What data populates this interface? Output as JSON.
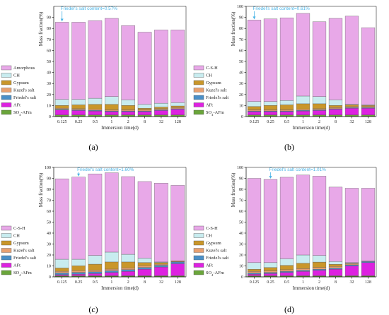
{
  "chart_data": [
    {
      "type": "bar",
      "panel_label": "(a)",
      "annotation": "Friedel's salt content=0.57%",
      "annotation_index": 0,
      "xlabel": "Immersion time(d)",
      "ylabel": "Mass fraction(%)",
      "ylim": [
        0,
        100
      ],
      "yticks": [
        0,
        10,
        20,
        30,
        40,
        50,
        60,
        70,
        80,
        90
      ],
      "categories": [
        "0.125",
        "0.25",
        "0.5",
        "1",
        "2",
        "8",
        "32",
        "128"
      ],
      "legend_position": "left",
      "series": [
        {
          "name": "SO4-AFm",
          "values": [
            1.5,
            1.5,
            1.5,
            1.5,
            1.5,
            1.5,
            1.5,
            1.5
          ]
        },
        {
          "name": "AFt",
          "values": [
            4.5,
            4,
            3.5,
            3,
            3,
            3,
            4,
            5
          ]
        },
        {
          "name": "Friedel's salt",
          "values": [
            0.6,
            0.6,
            0.6,
            0.6,
            0.6,
            0.6,
            0.6,
            0.6
          ]
        },
        {
          "name": "Kuzel's salt",
          "values": [
            1,
            1,
            1,
            1,
            1,
            1,
            1,
            1
          ]
        },
        {
          "name": "Gypsum",
          "values": [
            2.5,
            3.5,
            4.5,
            5,
            4,
            1.5,
            1.5,
            1.5
          ]
        },
        {
          "name": "CH",
          "values": [
            5.5,
            5,
            5.5,
            7,
            5,
            3.5,
            3.5,
            3
          ]
        },
        {
          "name": "Amorphous",
          "values": [
            70,
            70,
            70.5,
            71,
            67.5,
            65.5,
            66.5,
            66
          ]
        }
      ]
    },
    {
      "type": "bar",
      "panel_label": "(b)",
      "annotation": "Friedel's salt content=0.61%",
      "annotation_index": 0,
      "xlabel": "Immersion time(d)",
      "ylabel": "Mass fraction(%)",
      "ylim": [
        0,
        100
      ],
      "yticks": [
        0,
        10,
        20,
        30,
        40,
        50,
        60,
        70,
        80,
        90,
        100
      ],
      "categories": [
        "0.125",
        "0.25",
        "0.5",
        "1",
        "2",
        "8",
        "32",
        "128"
      ],
      "legend_position": "left",
      "series": [
        {
          "name": "SO4-AFm",
          "values": [
            1.5,
            1.5,
            1.5,
            1.5,
            1.5,
            1.5,
            1.5,
            1.5
          ]
        },
        {
          "name": "AFt",
          "values": [
            3,
            3,
            3,
            3.5,
            4,
            5,
            6,
            6
          ]
        },
        {
          "name": "Friedel's salt",
          "values": [
            0.6,
            0.6,
            0.6,
            0.6,
            0.6,
            0.6,
            0.6,
            0.6
          ]
        },
        {
          "name": "Kuzel's salt",
          "values": [
            1,
            1,
            1,
            1,
            1,
            1,
            1,
            1
          ]
        },
        {
          "name": "Gypsum",
          "values": [
            3,
            4,
            4.5,
            5,
            4.5,
            2,
            1.5,
            1
          ]
        },
        {
          "name": "CH",
          "values": [
            4.5,
            3.5,
            4,
            7,
            6.5,
            5,
            0.5,
            0.5
          ]
        },
        {
          "name": "C-S-H",
          "values": [
            74,
            75,
            75,
            75,
            68,
            74,
            80,
            70
          ]
        }
      ]
    },
    {
      "type": "bar",
      "panel_label": "(c)",
      "annotation": "Friedel's salt content=1.60%",
      "annotation_index": 1,
      "xlabel": "Immersion time(d)",
      "ylabel": "Mass fraction(%)",
      "ylim": [
        0,
        100
      ],
      "yticks": [
        0,
        10,
        20,
        30,
        40,
        50,
        60,
        70,
        80,
        90,
        100
      ],
      "categories": [
        "0.125",
        "0.25",
        "0.5",
        "1",
        "2",
        "8",
        "32",
        "128"
      ],
      "legend_position": "left",
      "series": [
        {
          "name": "SO4-AFm",
          "values": [
            1,
            1,
            1,
            1,
            1,
            1,
            1,
            1
          ]
        },
        {
          "name": "AFt",
          "values": [
            1,
            1.5,
            2,
            3,
            4,
            6,
            8,
            11
          ]
        },
        {
          "name": "Friedel's salt",
          "values": [
            1.6,
            1.6,
            1.6,
            1.6,
            1.6,
            1.6,
            1.6,
            1.6
          ]
        },
        {
          "name": "Kuzel's salt",
          "values": [
            1.5,
            1.5,
            1.5,
            1.5,
            1.5,
            1.5,
            1,
            0.5
          ]
        },
        {
          "name": "Gypsum",
          "values": [
            3,
            4.5,
            5.5,
            6.5,
            5.5,
            3,
            1.5,
            0.5
          ]
        },
        {
          "name": "CH",
          "values": [
            8,
            6,
            8,
            9,
            7,
            4,
            0.5,
            0
          ]
        },
        {
          "name": "C-S-H",
          "values": [
            73.5,
            75,
            74.5,
            72.5,
            71,
            70,
            72,
            69
          ]
        }
      ]
    },
    {
      "type": "bar",
      "panel_label": "(d)",
      "annotation": "Friedel's salt content=1.01%",
      "annotation_index": 1,
      "xlabel": "Immersion time(d)",
      "ylabel": "Mass fraction(%)",
      "ylim": [
        0,
        100
      ],
      "yticks": [
        0,
        10,
        20,
        30,
        40,
        50,
        60,
        70,
        80,
        90,
        100
      ],
      "categories": [
        "0.125",
        "0.25",
        "0.5",
        "1",
        "2",
        "8",
        "32",
        "128"
      ],
      "legend_position": "left",
      "series": [
        {
          "name": "SO4-AFm",
          "values": [
            1,
            1,
            1,
            1,
            1,
            1,
            1,
            1
          ]
        },
        {
          "name": "AFt",
          "values": [
            1.5,
            2,
            3,
            4,
            5,
            6,
            9,
            12
          ]
        },
        {
          "name": "Friedel's salt",
          "values": [
            1,
            1,
            1,
            1,
            1,
            1,
            1,
            1
          ]
        },
        {
          "name": "Kuzel's salt",
          "values": [
            1.5,
            1.5,
            1.5,
            1.5,
            1.5,
            1.5,
            1,
            0.5
          ]
        },
        {
          "name": "Gypsum",
          "values": [
            2,
            3,
            4,
            5,
            5,
            2,
            0.5,
            0
          ]
        },
        {
          "name": "CH",
          "values": [
            6,
            4.5,
            6,
            7.5,
            6,
            2.5,
            0.5,
            0
          ]
        },
        {
          "name": "C-S-H",
          "values": [
            77,
            76,
            74.5,
            73,
            72.5,
            68,
            68,
            66.5
          ]
        }
      ]
    }
  ],
  "colors": {
    "SO4-AFm": "#6aa53a",
    "AFt": "#dd22e0",
    "Friedel's salt": "#4a8fc8",
    "Kuzel's salt": "#e8a070",
    "Gypsum": "#c9962a",
    "CH": "#c8ecef",
    "Amorphous": "#e8a8e8",
    "C-S-H": "#e8a8e8",
    "annotation": "#4ab4e6"
  }
}
